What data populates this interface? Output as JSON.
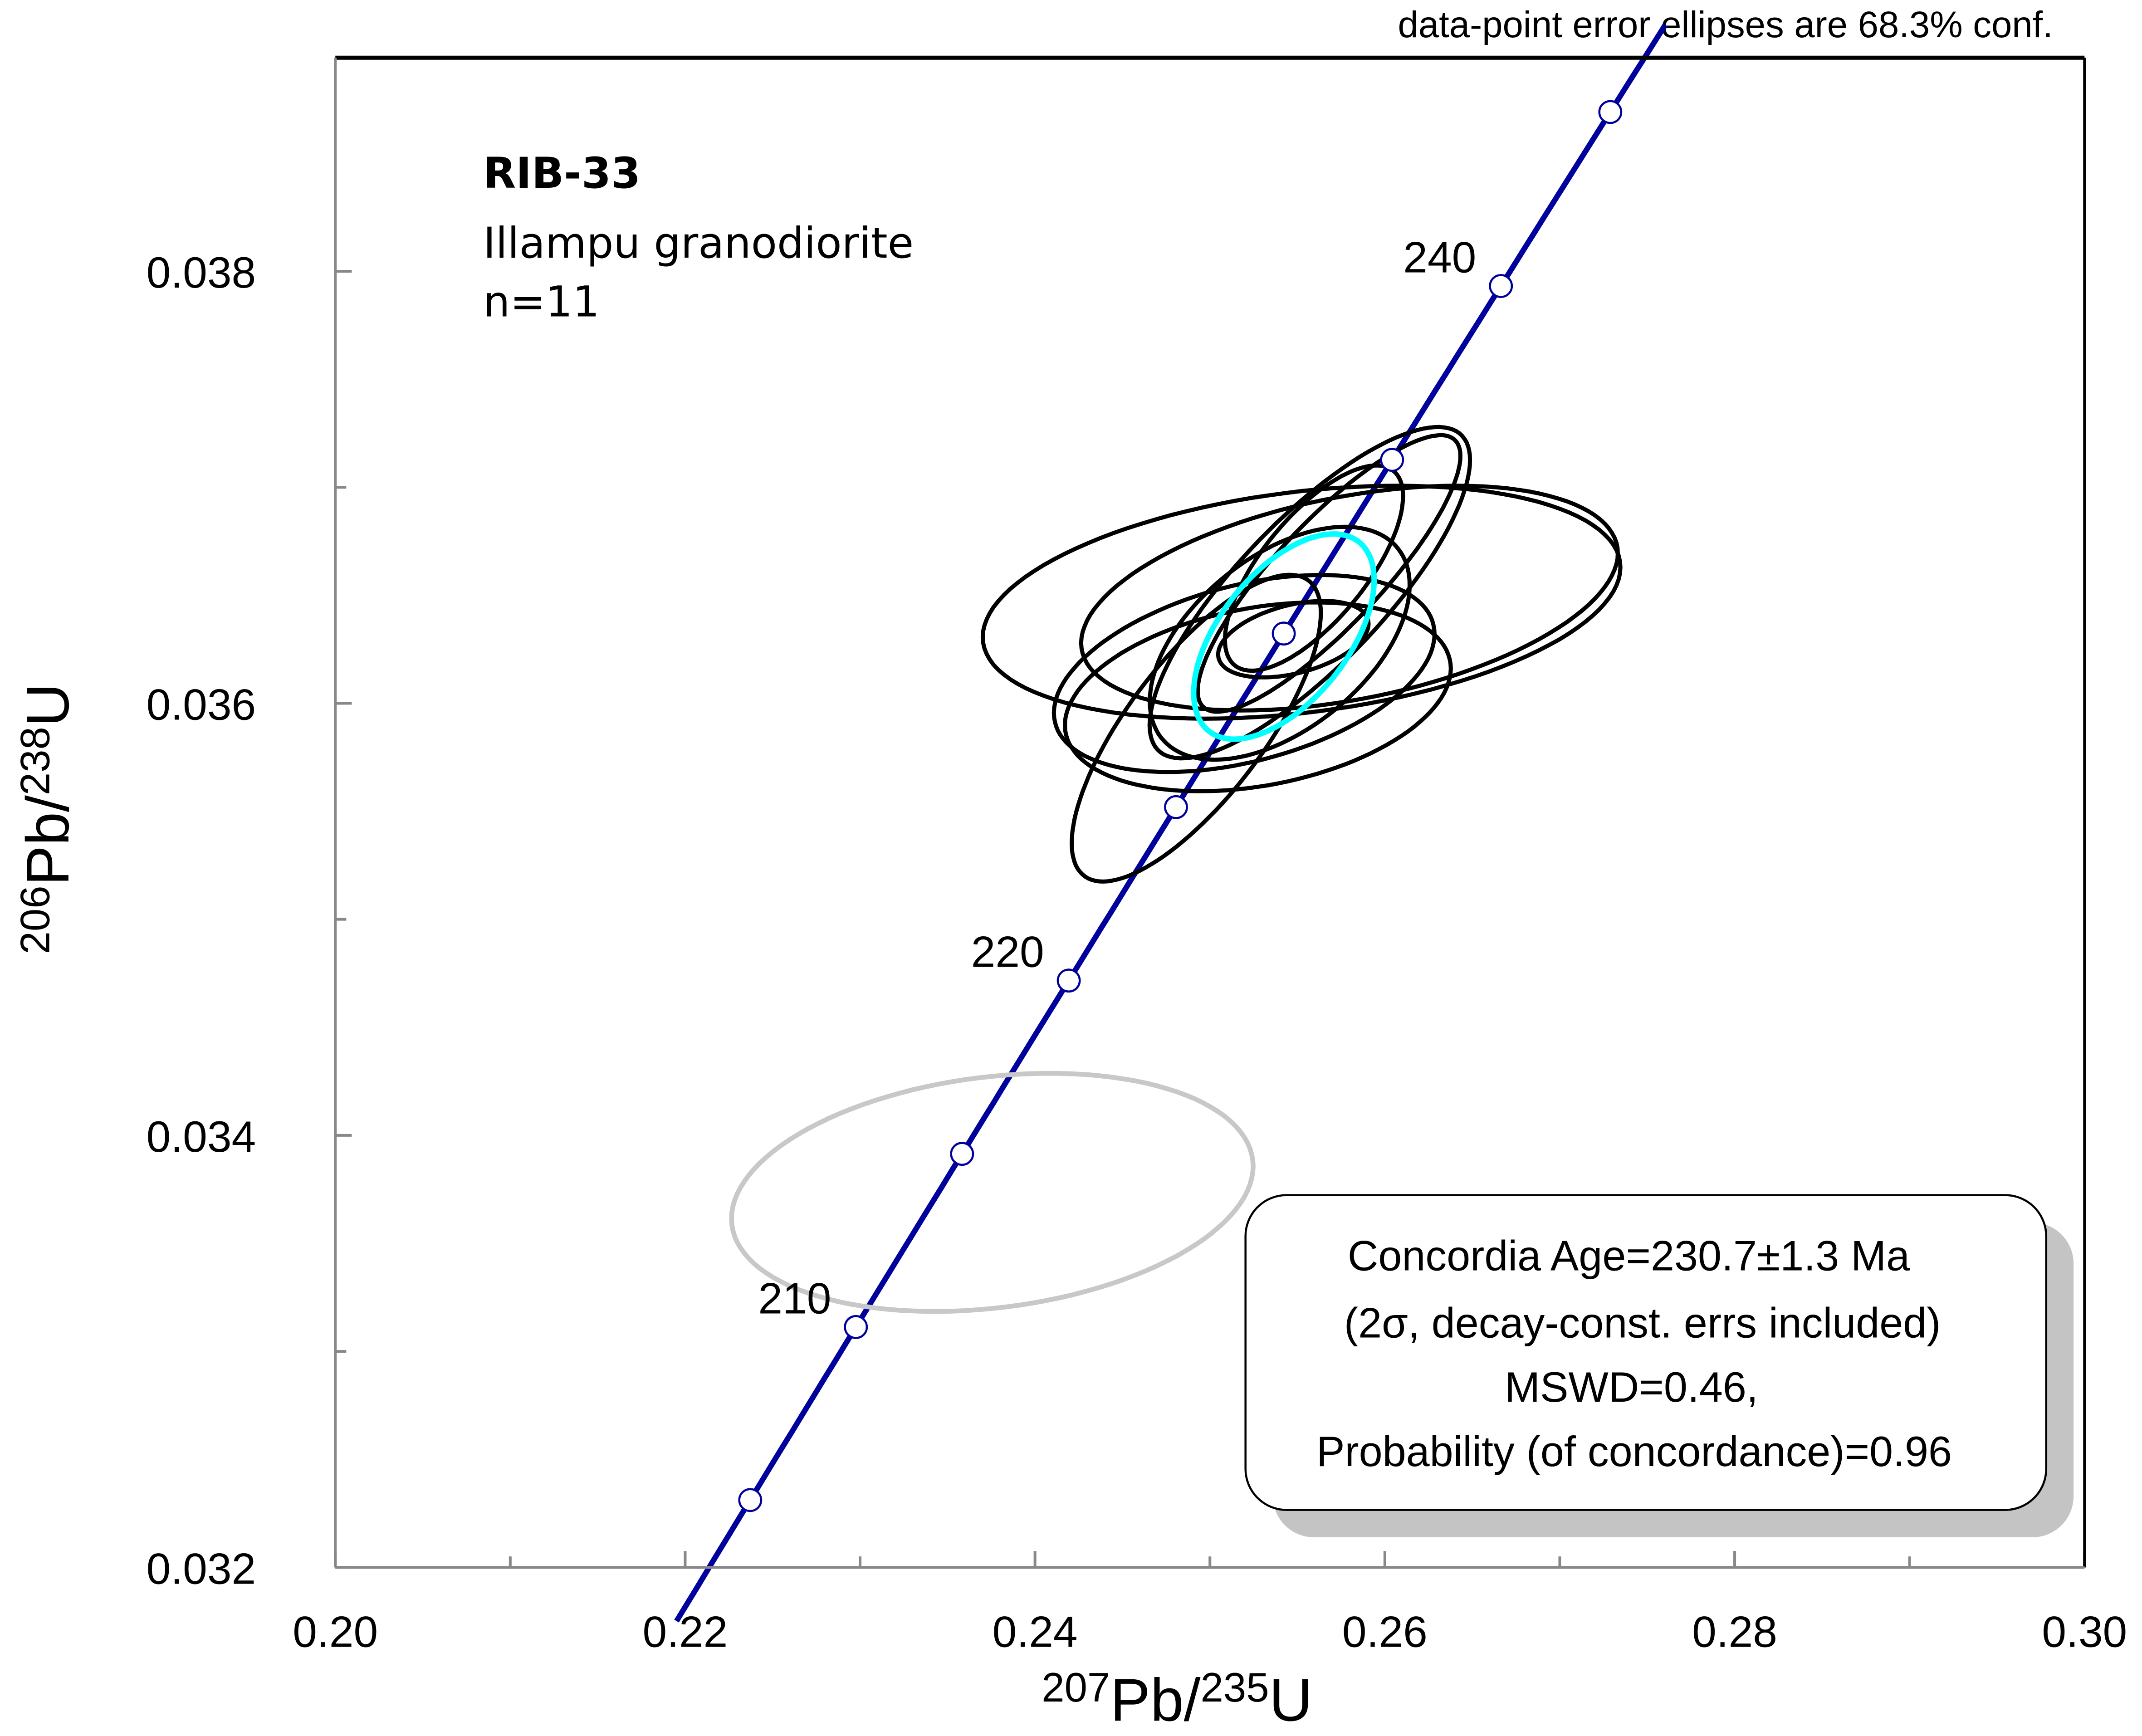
{
  "chart_data": {
    "type": "scatter",
    "subtype": "concordia",
    "note": "data-point error ellipses are 68.3% conf.",
    "sample": {
      "name": "RIB-33",
      "lithology": "Illampu granodiorite",
      "n": "n=11"
    },
    "xlabel": {
      "sup1": "207",
      "main1": "Pb/",
      "sup2": "235",
      "main2": "U"
    },
    "ylabel": {
      "sup1": "206",
      "main1": "Pb/",
      "sup2": "238",
      "main2": "U"
    },
    "xlim": [
      0.2,
      0.3
    ],
    "ylim": [
      0.032,
      0.039
    ],
    "x_ticks": [
      "0.20",
      "0.22",
      "0.24",
      "0.26",
      "0.28",
      "0.30"
    ],
    "y_ticks": [
      "0.032",
      "0.034",
      "0.036",
      "0.038"
    ],
    "x_minor_step": 0.01,
    "y_minor_step": 0.001,
    "concordia": {
      "color": "#00009c",
      "age_range_ma": [
        201.5,
        247.5
      ],
      "marker_ages_ma": [
        205,
        210,
        215,
        220,
        225,
        230,
        235,
        240,
        245
      ],
      "labels": [
        {
          "age": 210,
          "text": "210"
        },
        {
          "age": 220,
          "text": "220"
        },
        {
          "age": 240,
          "text": "240"
        }
      ]
    },
    "ellipses": [
      {
        "x": 0.25524,
        "y": 0.036468,
        "sx": 0.01823,
        "sy": 0.000539,
        "rho": 0.3,
        "color": "#000000"
      },
      {
        "x": 0.25798,
        "y": 0.036487,
        "sx": 0.01534,
        "sy": 0.00052,
        "rho": 0.4,
        "color": "#000000"
      },
      {
        "x": 0.24922,
        "y": 0.035885,
        "sx": 0.00712,
        "sy": 0.00071,
        "rho": 0.75,
        "color": "#000000"
      },
      {
        "x": 0.25196,
        "y": 0.036138,
        "sx": 0.01088,
        "sy": 0.000456,
        "rho": 0.4,
        "color": "#000000"
      },
      {
        "x": 0.25274,
        "y": 0.03603,
        "sx": 0.01103,
        "sy": 0.000437,
        "rho": 0.3,
        "color": "#000000"
      },
      {
        "x": 0.25571,
        "y": 0.036512,
        "sx": 0.00916,
        "sy": 0.000767,
        "rho": 0.8,
        "color": "#000000"
      },
      {
        "x": 0.25681,
        "y": 0.036601,
        "sx": 0.00751,
        "sy": 0.00064,
        "rho": 0.85,
        "color": "#000000"
      },
      {
        "x": 0.25399,
        "y": 0.036278,
        "sx": 0.00743,
        "sy": 0.000539,
        "rho": 0.5,
        "color": "#000000"
      },
      {
        "x": 0.25477,
        "y": 0.036297,
        "sx": 0.0043,
        "sy": 0.000177,
        "rho": 0.4,
        "color": "#000000"
      },
      {
        "x": 0.25595,
        "y": 0.036626,
        "sx": 0.00509,
        "sy": 0.000475,
        "rho": 0.7,
        "color": "#000000"
      },
      {
        "x": 0.23756,
        "y": 0.033736,
        "sx": 0.01491,
        "sy": 0.000551,
        "rho": 0.22,
        "color": "#c8c8c8",
        "excluded": true
      }
    ],
    "concordia_age_ellipse": {
      "x": 0.25423,
      "y": 0.036309,
      "sx": 0.00516,
      "sy": 0.000475,
      "rho": 0.55,
      "color": "#00ffff"
    },
    "result_box": {
      "line1": "Concordia Age=230.7±1.3 Ma",
      "line2": "(2σ, decay-const. errs included)",
      "line3": "MSWD=0.46,",
      "line4": "Probability  (of concordance)=0.96"
    }
  }
}
